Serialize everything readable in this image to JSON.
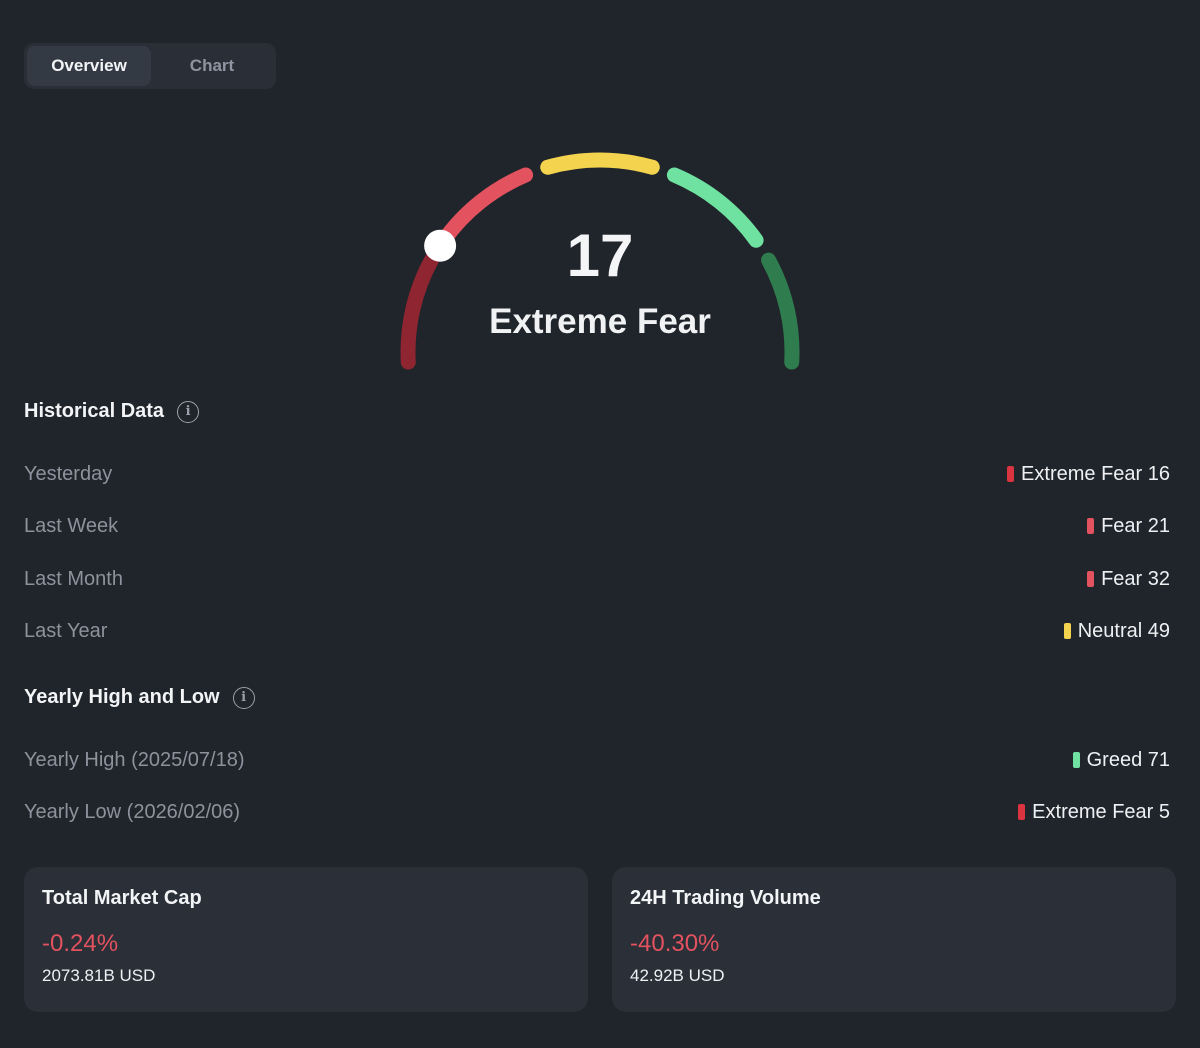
{
  "tabs": [
    {
      "label": "Overview",
      "active": true
    },
    {
      "label": "Chart",
      "active": false
    }
  ],
  "gauge": {
    "value": "17",
    "label": "Extreme Fear",
    "level": 17,
    "max": 100,
    "segments": [
      {
        "name": "extreme-fear",
        "color": "#8e2530"
      },
      {
        "name": "fear",
        "color": "#e2525f"
      },
      {
        "name": "neutral",
        "color": "#f4d44f"
      },
      {
        "name": "greed",
        "color": "#6fe1a1"
      },
      {
        "name": "extreme-greed",
        "color": "#2f7d4e"
      }
    ]
  },
  "historical": {
    "title": "Historical Data",
    "rows": [
      {
        "label": "Yesterday",
        "value": "Extreme Fear 16",
        "color": "#d9343f"
      },
      {
        "label": "Last Week",
        "value": "Fear 21",
        "color": "#e2525f"
      },
      {
        "label": "Last Month",
        "value": "Fear 32",
        "color": "#e2525f"
      },
      {
        "label": "Last Year",
        "value": "Neutral 49",
        "color": "#f4d44f"
      }
    ]
  },
  "yearly": {
    "title": "Yearly High and Low",
    "rows": [
      {
        "label": "Yearly High (2025/07/18)",
        "value": "Greed 71",
        "color": "#6fe1a1"
      },
      {
        "label": "Yearly Low (2026/02/06)",
        "value": "Extreme Fear 5",
        "color": "#d9343f"
      }
    ]
  },
  "cards": [
    {
      "title": "Total Market Cap",
      "change": "-0.24%",
      "amount": "2073.81B USD"
    },
    {
      "title": "24H Trading Volume",
      "change": "-40.30%",
      "amount": "42.92B USD"
    }
  ],
  "info_icon_glyph": "i"
}
